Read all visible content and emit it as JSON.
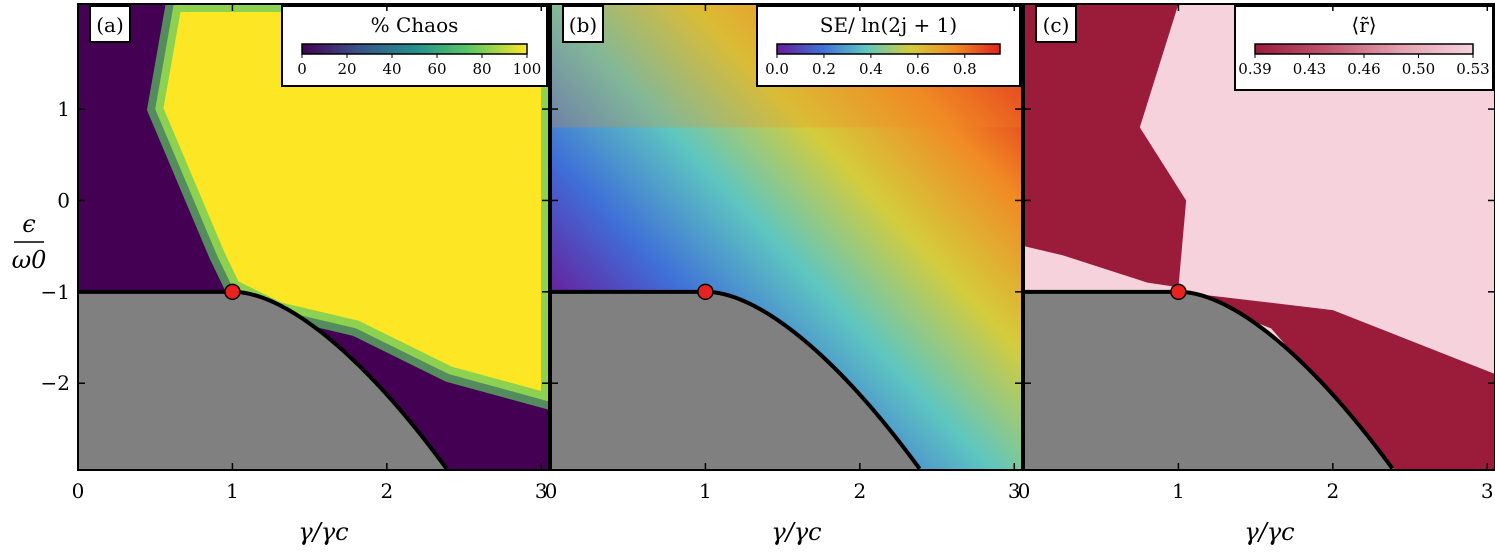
{
  "chart_data": {
    "type": "heatmap",
    "xlabel": "γ/γc",
    "ylabel_num": "ϵ",
    "ylabel_den": "ω0",
    "xlim": [
      0,
      3.05
    ],
    "ylim": [
      -2.95,
      2.15
    ],
    "x_ticks": [
      0,
      1,
      2,
      3
    ],
    "y_ticks": [
      1,
      0,
      -1,
      -2
    ],
    "y_tick_labels": [
      "1",
      "0",
      "−1",
      "−2"
    ],
    "critical_point": {
      "x": 1,
      "y": -1
    },
    "boundary_curve": "ϵ/ω0 = −1 for γ/γc ≤ 1; ϵ/ω0 = −(γ/γc)² /2 − 1/(2(γ/γc)²) for γ/γc > 1",
    "panels": [
      {
        "tag": "(a)",
        "colorbar_title": "% Chaos",
        "colormap": "viridis",
        "colorbar_range": [
          0,
          100
        ],
        "colorbar_ticks": [
          "0",
          "20",
          "40",
          "60",
          "80",
          "100"
        ],
        "colors": [
          "#440154",
          "#3b528b",
          "#21908c",
          "#5dc863",
          "#fde725"
        ]
      },
      {
        "tag": "(b)",
        "colorbar_title": "SE/ ln(2j + 1)",
        "colormap": "rainbow",
        "colorbar_range": [
          0.0,
          0.95
        ],
        "colorbar_ticks": [
          "0.0",
          "0.2",
          "0.4",
          "0.6",
          "0.8"
        ],
        "colors": [
          "#6a1b9a",
          "#3f6fd8",
          "#5ec6c0",
          "#d4cc3c",
          "#f08a24",
          "#e0231f"
        ]
      },
      {
        "tag": "(c)",
        "colorbar_title": "⟨r̃⟩",
        "colormap": "crimson-pink",
        "colorbar_range": [
          0.39,
          0.53
        ],
        "colorbar_ticks": [
          "0.39",
          "0.43",
          "0.46",
          "0.50",
          "0.53"
        ],
        "colors": [
          "#9b1b3b",
          "#c0566e",
          "#e3a0b0",
          "#f6d3dc"
        ]
      }
    ]
  },
  "colors": {
    "forbidden_region": "#808080",
    "critical_point": "#e8221e",
    "boundary_line": "#000000"
  }
}
